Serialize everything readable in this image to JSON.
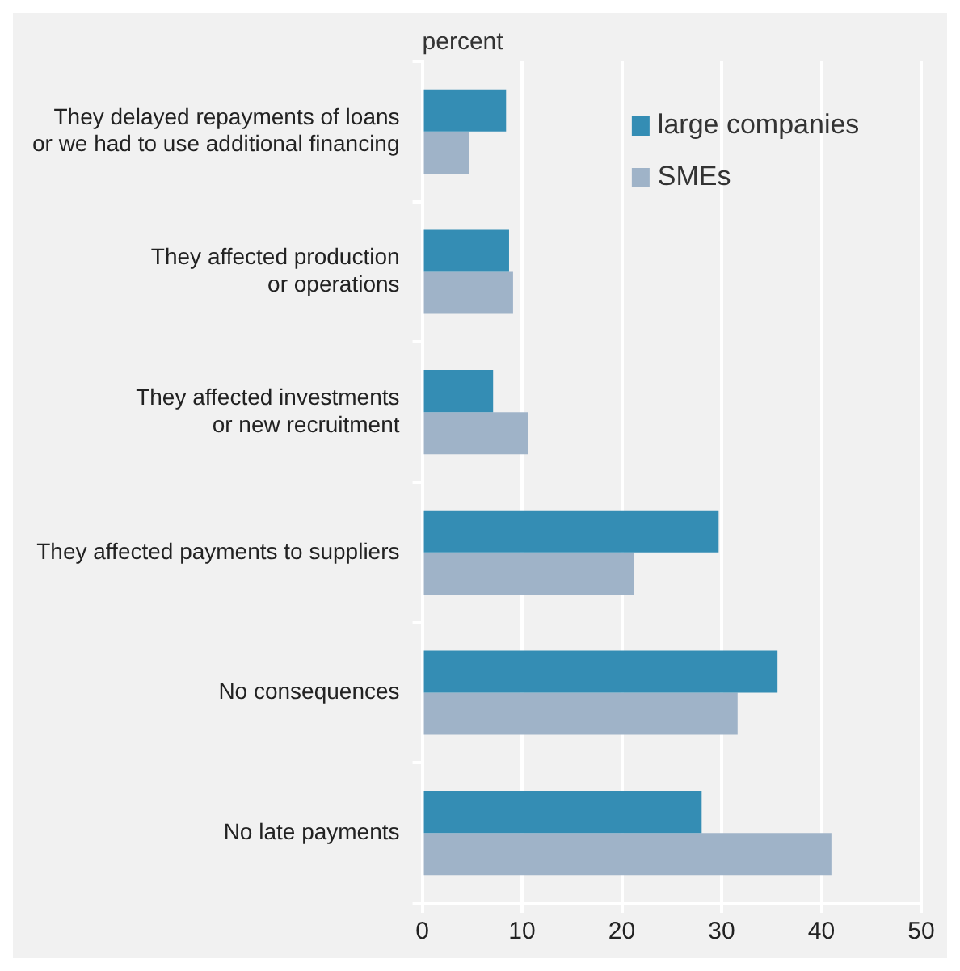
{
  "chart_data": {
    "type": "bar",
    "orientation": "horizontal",
    "xlabel": "percent",
    "categories": [
      "They delayed repayments of loans\nor we had to use additional financing",
      "They affected production\nor operations",
      "They affected investments\nor new recruitment",
      "They affected payments to suppliers",
      "No consequences",
      "No late payments"
    ],
    "series": [
      {
        "name": "large companies",
        "color": "#348db4",
        "values": [
          8.4,
          8.7,
          7.1,
          29.7,
          35.6,
          28.0
        ]
      },
      {
        "name": "SMEs",
        "color": "#9fb3c8",
        "values": [
          4.7,
          9.1,
          10.6,
          21.2,
          31.6,
          41.0
        ]
      }
    ],
    "xlim": [
      0,
      50
    ],
    "xticks": [
      0,
      10,
      20,
      30,
      40,
      50
    ],
    "grid": "x",
    "legend": "top right"
  }
}
